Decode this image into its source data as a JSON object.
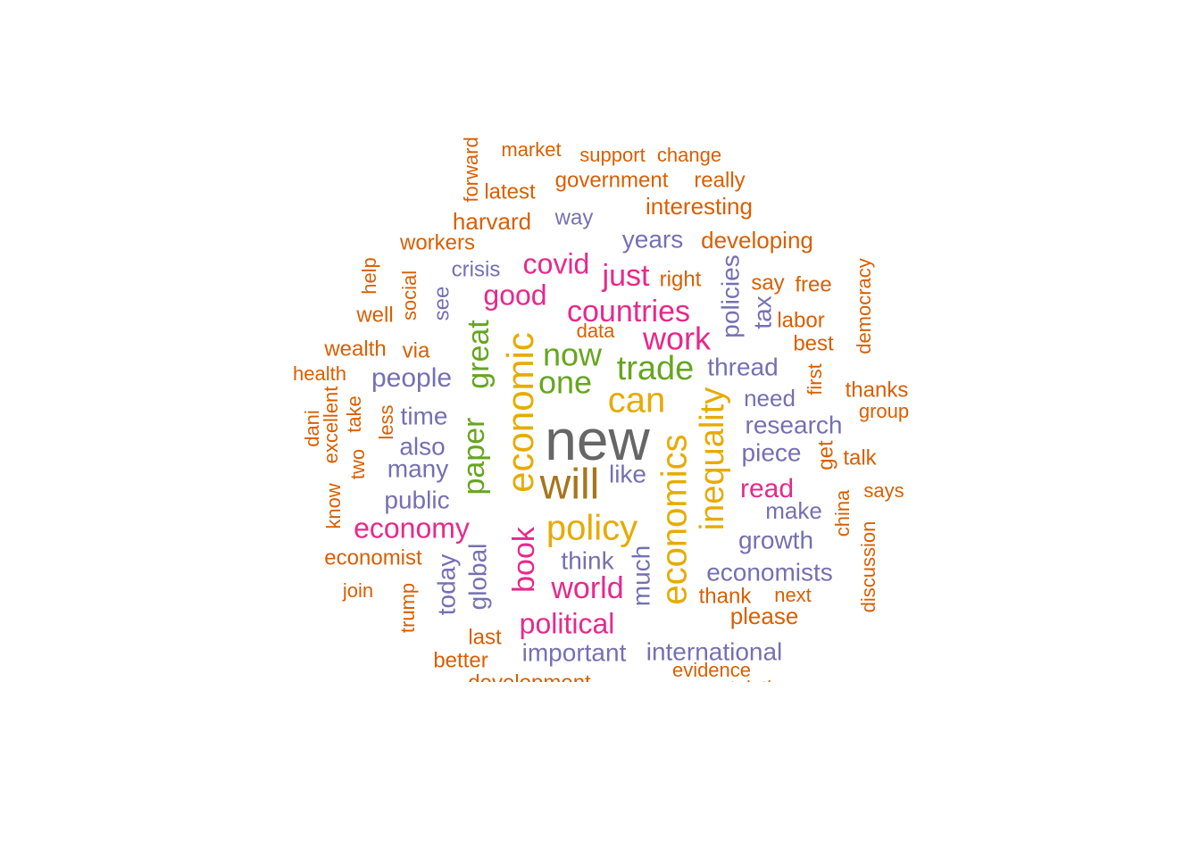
{
  "colors": {
    "grey": "#666666",
    "olive": "#a6761d",
    "gold": "#e6ab02",
    "green": "#66a61e",
    "magenta": "#e7298a",
    "purple": "#7570b3",
    "orange": "#d95f02"
  },
  "words": [
    {
      "text": "new",
      "color": "grey"
    },
    {
      "text": "will",
      "color": "olive"
    },
    {
      "text": "economic",
      "color": "gold"
    },
    {
      "text": "policy",
      "color": "gold"
    },
    {
      "text": "economics",
      "color": "gold"
    },
    {
      "text": "inequality",
      "color": "gold"
    },
    {
      "text": "can",
      "color": "gold"
    },
    {
      "text": "now",
      "color": "green"
    },
    {
      "text": "one",
      "color": "green"
    },
    {
      "text": "trade",
      "color": "green"
    },
    {
      "text": "great",
      "color": "green"
    },
    {
      "text": "paper",
      "color": "green"
    },
    {
      "text": "work",
      "color": "magenta"
    },
    {
      "text": "countries",
      "color": "magenta"
    },
    {
      "text": "just",
      "color": "magenta"
    },
    {
      "text": "covid",
      "color": "magenta"
    },
    {
      "text": "good",
      "color": "magenta"
    },
    {
      "text": "economy",
      "color": "magenta"
    },
    {
      "text": "book",
      "color": "magenta"
    },
    {
      "text": "world",
      "color": "magenta"
    },
    {
      "text": "political",
      "color": "magenta"
    },
    {
      "text": "read",
      "color": "magenta"
    },
    {
      "text": "people",
      "color": "purple"
    },
    {
      "text": "time",
      "color": "purple"
    },
    {
      "text": "also",
      "color": "purple"
    },
    {
      "text": "many",
      "color": "purple"
    },
    {
      "text": "public",
      "color": "purple"
    },
    {
      "text": "like",
      "color": "purple"
    },
    {
      "text": "think",
      "color": "purple"
    },
    {
      "text": "much",
      "color": "purple"
    },
    {
      "text": "global",
      "color": "purple"
    },
    {
      "text": "today",
      "color": "purple"
    },
    {
      "text": "important",
      "color": "purple"
    },
    {
      "text": "international",
      "color": "purple"
    },
    {
      "text": "economists",
      "color": "purple"
    },
    {
      "text": "growth",
      "color": "purple"
    },
    {
      "text": "make",
      "color": "purple"
    },
    {
      "text": "piece",
      "color": "purple"
    },
    {
      "text": "research",
      "color": "purple"
    },
    {
      "text": "need",
      "color": "purple"
    },
    {
      "text": "thread",
      "color": "purple"
    },
    {
      "text": "policies",
      "color": "purple"
    },
    {
      "text": "tax",
      "color": "purple"
    },
    {
      "text": "years",
      "color": "purple"
    },
    {
      "text": "way",
      "color": "purple"
    },
    {
      "text": "crisis",
      "color": "purple"
    },
    {
      "text": "see",
      "color": "purple"
    },
    {
      "text": "market",
      "color": "orange"
    },
    {
      "text": "support",
      "color": "orange"
    },
    {
      "text": "change",
      "color": "orange"
    },
    {
      "text": "forward",
      "color": "orange"
    },
    {
      "text": "latest",
      "color": "orange"
    },
    {
      "text": "government",
      "color": "orange"
    },
    {
      "text": "really",
      "color": "orange"
    },
    {
      "text": "interesting",
      "color": "orange"
    },
    {
      "text": "harvard",
      "color": "orange"
    },
    {
      "text": "workers",
      "color": "orange"
    },
    {
      "text": "developing",
      "color": "orange"
    },
    {
      "text": "right",
      "color": "orange"
    },
    {
      "text": "say",
      "color": "orange"
    },
    {
      "text": "free",
      "color": "orange"
    },
    {
      "text": "labor",
      "color": "orange"
    },
    {
      "text": "data",
      "color": "orange"
    },
    {
      "text": "best",
      "color": "orange"
    },
    {
      "text": "democracy",
      "color": "orange"
    },
    {
      "text": "help",
      "color": "orange"
    },
    {
      "text": "social",
      "color": "orange"
    },
    {
      "text": "well",
      "color": "orange"
    },
    {
      "text": "wealth",
      "color": "orange"
    },
    {
      "text": "via",
      "color": "orange"
    },
    {
      "text": "health",
      "color": "orange"
    },
    {
      "text": "first",
      "color": "orange"
    },
    {
      "text": "thanks",
      "color": "orange"
    },
    {
      "text": "group",
      "color": "orange"
    },
    {
      "text": "dani",
      "color": "orange"
    },
    {
      "text": "excellent",
      "color": "orange"
    },
    {
      "text": "take",
      "color": "orange"
    },
    {
      "text": "two",
      "color": "orange"
    },
    {
      "text": "less",
      "color": "orange"
    },
    {
      "text": "know",
      "color": "orange"
    },
    {
      "text": "get",
      "color": "orange"
    },
    {
      "text": "talk",
      "color": "orange"
    },
    {
      "text": "says",
      "color": "orange"
    },
    {
      "text": "china",
      "color": "orange"
    },
    {
      "text": "economist",
      "color": "orange"
    },
    {
      "text": "join",
      "color": "orange"
    },
    {
      "text": "trump",
      "color": "orange"
    },
    {
      "text": "discussion",
      "color": "orange"
    },
    {
      "text": "thank",
      "color": "orange"
    },
    {
      "text": "next",
      "color": "orange"
    },
    {
      "text": "please",
      "color": "orange"
    },
    {
      "text": "last",
      "color": "orange"
    },
    {
      "text": "better",
      "color": "orange"
    },
    {
      "text": "development",
      "color": "orange"
    },
    {
      "text": "evidence",
      "color": "orange"
    },
    {
      "text": "congratulations",
      "color": "orange"
    }
  ]
}
